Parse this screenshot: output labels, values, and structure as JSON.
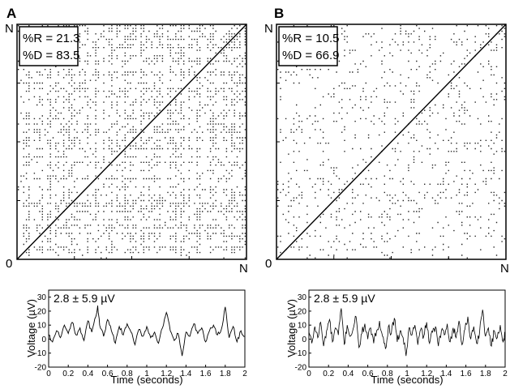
{
  "panels": [
    {
      "letter": "A",
      "origin_label": "0",
      "n_label_x": "N",
      "n_label_y": "N",
      "stats": [
        "%R = 21.3",
        "%D = 83.5"
      ],
      "recurrence": {
        "density": 0.213,
        "diagonal_structure": "high"
      },
      "trace": {
        "annotation": "2.8 ± 5.9 µV",
        "ylabel": "Voltage (µV)",
        "xlabel": "Time (seconds)",
        "yticks": [
          "30",
          "20",
          "10",
          "0",
          "-10",
          "-20"
        ],
        "xticks": [
          "0",
          "0.2",
          "0.4",
          "0.6",
          "0.8",
          "1",
          "1.2",
          "1.4",
          "1.6",
          "1.8",
          "2"
        ]
      }
    },
    {
      "letter": "B",
      "origin_label": "0",
      "n_label_x": "N",
      "n_label_y": "N",
      "stats": [
        "%R = 10.5",
        "%D = 66.9"
      ],
      "recurrence": {
        "density": 0.105,
        "diagonal_structure": "low"
      },
      "trace": {
        "annotation": "2.8 ± 5.9 µV",
        "ylabel": "Voltage (µV)",
        "xlabel": "Time (seconds)",
        "yticks": [
          "30",
          "20",
          "10",
          "0",
          "-10",
          "-20"
        ],
        "xticks": [
          "0",
          "0.2",
          "0.4",
          "0.6",
          "0.8",
          "1",
          "1.2",
          "1.4",
          "1.6",
          "1.8",
          "2"
        ]
      }
    }
  ],
  "chart_data": [
    {
      "type": "heatmap",
      "title": "",
      "xlabel": "",
      "ylabel": "",
      "x_range": [
        "0",
        "N"
      ],
      "y_range": [
        "0",
        "N"
      ],
      "recurrence_rate_percent": 21.3,
      "determinism_percent": 83.5
    },
    {
      "type": "heatmap",
      "title": "",
      "xlabel": "",
      "ylabel": "",
      "x_range": [
        "0",
        "N"
      ],
      "y_range": [
        "0",
        "N"
      ],
      "recurrence_rate_percent": 10.5,
      "determinism_percent": 66.9
    },
    {
      "type": "line",
      "xlabel": "Time (seconds)",
      "ylabel": "Voltage (µV)",
      "xlim": [
        0,
        2
      ],
      "ylim": [
        -20,
        35
      ],
      "grid": false,
      "series": [
        {
          "x": [
            0,
            0.04,
            0.08,
            0.12,
            0.16,
            0.2,
            0.24,
            0.28,
            0.32,
            0.36,
            0.4,
            0.44,
            0.48,
            0.5,
            0.52,
            0.56,
            0.6,
            0.64,
            0.68,
            0.72,
            0.76,
            0.8,
            0.84,
            0.88,
            0.92,
            0.96,
            1.0,
            1.04,
            1.08,
            1.12,
            1.16,
            1.2,
            1.24,
            1.28,
            1.32,
            1.36,
            1.4,
            1.44,
            1.48,
            1.52,
            1.56,
            1.6,
            1.64,
            1.68,
            1.72,
            1.76,
            1.8,
            1.84,
            1.88,
            1.92,
            1.96,
            2.0
          ],
          "values": [
            3,
            -2,
            6,
            1,
            10,
            4,
            12,
            3,
            8,
            -1,
            13,
            5,
            16,
            24,
            10,
            2,
            14,
            6,
            -3,
            9,
            3,
            11,
            5,
            -4,
            7,
            2,
            9,
            1,
            5,
            -3,
            8,
            19,
            6,
            -1,
            4,
            -12,
            5,
            2,
            11,
            4,
            8,
            -2,
            6,
            10,
            3,
            7,
            23,
            1,
            9,
            -2,
            6,
            2
          ]
        }
      ]
    },
    {
      "type": "line",
      "xlabel": "Time (seconds)",
      "ylabel": "Voltage (µV)",
      "xlim": [
        0,
        2
      ],
      "ylim": [
        -20,
        35
      ],
      "grid": false,
      "series": [
        {
          "x": [
            0,
            0.03,
            0.06,
            0.09,
            0.12,
            0.15,
            0.18,
            0.21,
            0.24,
            0.27,
            0.3,
            0.33,
            0.36,
            0.39,
            0.42,
            0.45,
            0.48,
            0.51,
            0.54,
            0.57,
            0.6,
            0.63,
            0.66,
            0.69,
            0.72,
            0.75,
            0.78,
            0.81,
            0.84,
            0.87,
            0.9,
            0.93,
            0.96,
            0.99,
            1.02,
            1.05,
            1.08,
            1.11,
            1.14,
            1.17,
            1.2,
            1.23,
            1.26,
            1.29,
            1.32,
            1.35,
            1.38,
            1.41,
            1.44,
            1.47,
            1.5,
            1.53,
            1.56,
            1.59,
            1.62,
            1.65,
            1.68,
            1.71,
            1.74,
            1.77,
            1.8,
            1.83,
            1.86,
            1.89,
            1.92,
            1.95,
            1.98,
            2.0
          ],
          "values": [
            5,
            -3,
            9,
            1,
            12,
            -5,
            6,
            14,
            -2,
            8,
            3,
            22,
            -4,
            10,
            2,
            7,
            16,
            -6,
            4,
            11,
            0,
            8,
            -3,
            6,
            13,
            2,
            -7,
            9,
            4,
            15,
            -2,
            6,
            1,
            -12,
            8,
            3,
            10,
            -4,
            7,
            2,
            12,
            -3,
            5,
            9,
            -5,
            6,
            3,
            11,
            -2,
            8,
            1,
            13,
            -4,
            7,
            16,
            0,
            9,
            -3,
            5,
            21,
            2,
            8,
            -5,
            6,
            1,
            10,
            -2,
            4
          ]
        }
      ]
    }
  ]
}
